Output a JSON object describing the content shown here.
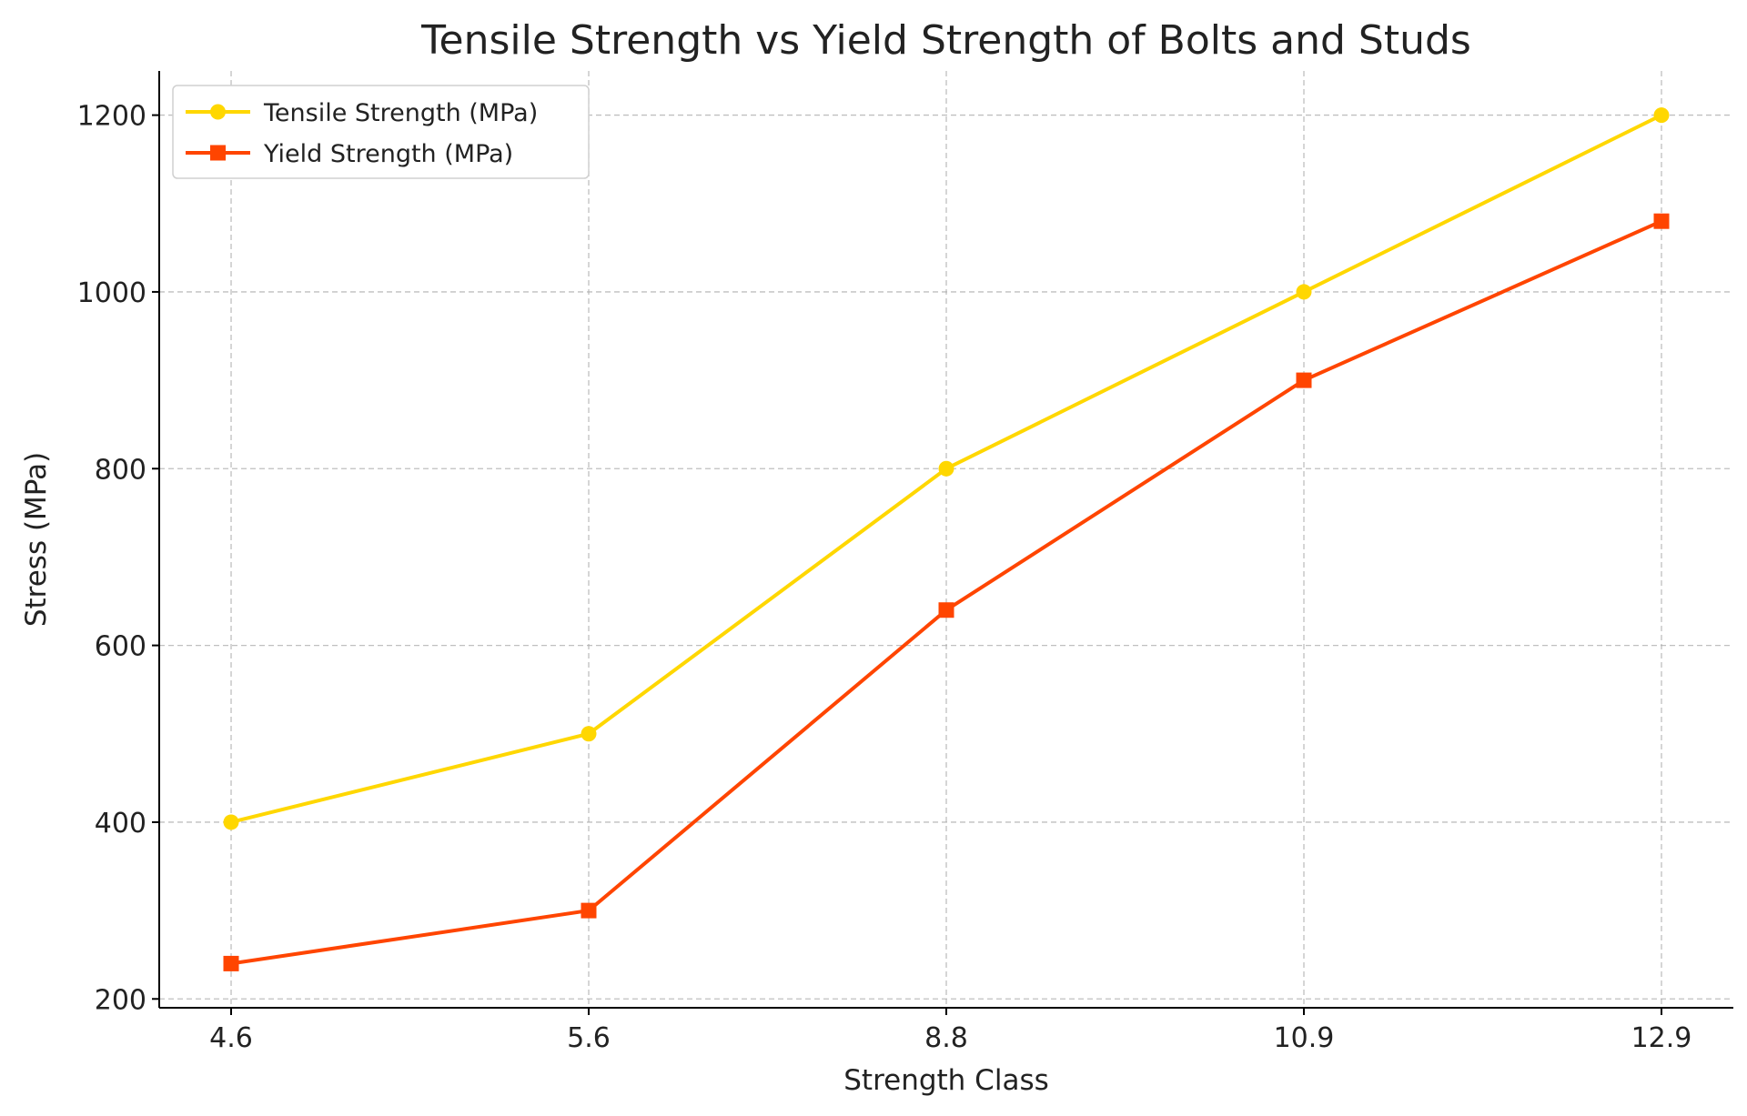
{
  "chart_data": {
    "type": "line",
    "title": "Tensile Strength vs Yield Strength of Bolts and Studs",
    "xlabel": "Strength Class",
    "ylabel": "Stress (MPa)",
    "categories": [
      "4.6",
      "5.6",
      "8.8",
      "10.9",
      "12.9"
    ],
    "ylim": [
      190,
      1250
    ],
    "yticks": [
      200,
      400,
      600,
      800,
      1000,
      1200
    ],
    "grid": true,
    "legend_position": "top-left",
    "series": [
      {
        "name": "Tensile Strength (MPa)",
        "values": [
          400,
          500,
          800,
          1000,
          1200
        ],
        "color": "#FFD700",
        "marker": "circle"
      },
      {
        "name": "Yield Strength (MPa)",
        "values": [
          240,
          300,
          640,
          900,
          1080
        ],
        "color": "#FF4500",
        "marker": "square"
      }
    ]
  }
}
